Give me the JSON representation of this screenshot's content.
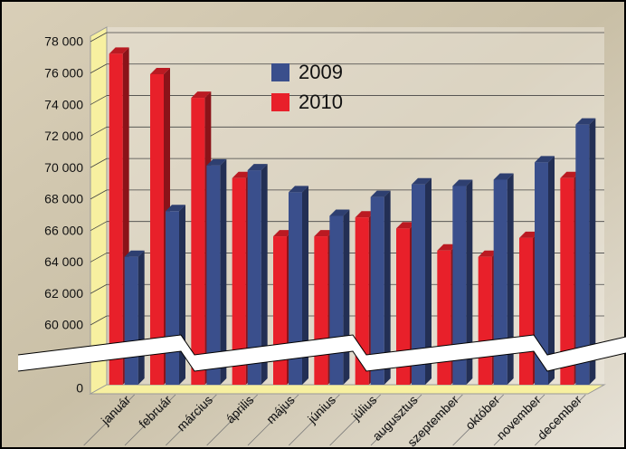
{
  "chart_data": {
    "type": "bar",
    "categories": [
      "január",
      "február",
      "március",
      "április",
      "május",
      "június",
      "július",
      "augusztus",
      "szeptember",
      "október",
      "november",
      "december"
    ],
    "series": [
      {
        "name": "2010",
        "color": "#e8202a",
        "values": [
          77000,
          75700,
          74200,
          69100,
          65400,
          65400,
          66600,
          65900,
          64500,
          64100,
          65300,
          69100
        ]
      },
      {
        "name": "2009",
        "color": "#3a4f8c",
        "values": [
          64100,
          67000,
          69900,
          69600,
          68200,
          66700,
          67900,
          68700,
          68600,
          69000,
          70100,
          72500
        ]
      }
    ],
    "legend_order": [
      1,
      0
    ],
    "ylim": [
      0,
      78000
    ],
    "yticks": [
      0,
      {
        "value": 60000,
        "label": "60 000"
      },
      {
        "value": 62000,
        "label": "62 000"
      },
      {
        "value": 64000,
        "label": "64 000"
      },
      {
        "value": 66000,
        "label": "66 000"
      },
      {
        "value": 68000,
        "label": "68 000"
      },
      {
        "value": 70000,
        "label": "70 000"
      },
      {
        "value": 72000,
        "label": "72 000"
      },
      {
        "value": 74000,
        "label": "74 000"
      },
      {
        "value": 76000,
        "label": "76 000"
      },
      {
        "value": 78000,
        "label": "78 000"
      }
    ],
    "broken_axis": true,
    "grid": true
  }
}
